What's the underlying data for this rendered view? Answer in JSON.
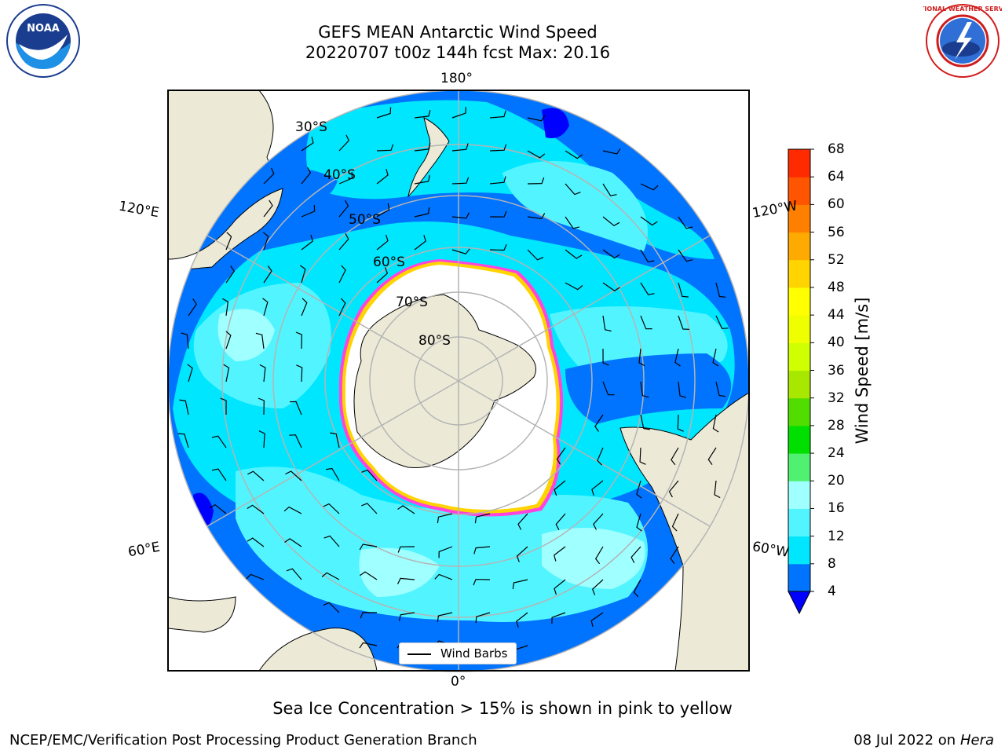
{
  "title": {
    "line1": "GEFS MEAN Antarctic Wind Speed",
    "line2": "20220707 t00z 144h fcst   Max: 20.16"
  },
  "logos": {
    "left": {
      "icon": "noaa-logo",
      "text": "NOAA"
    },
    "right": {
      "icon": "nws-logo",
      "text": "NATIONAL WEATHER SERVICE"
    }
  },
  "map": {
    "projection": "south-polar-stereographic",
    "meridian_labels": {
      "top": "180°",
      "bottom": "0°",
      "upper_left": "120°E",
      "upper_right": "120°W",
      "lower_left": "60°E",
      "lower_right": "60°W"
    },
    "latitude_labels": [
      "30°S",
      "40°S",
      "50°S",
      "60°S",
      "70°S",
      "80°S"
    ],
    "legend_label": "Wind Barbs",
    "colors": {
      "land": "#ecead7",
      "sea_ice": "#ffffff",
      "wind_4_8": "#0073ff",
      "wind_8_12": "#00e6ff",
      "wind_12_16": "#52f5ff",
      "wind_16_20": "#a0ffff",
      "ice_edge_pink": "#ff44dd",
      "ice_edge_yellow": "#ffd400",
      "grid": "#b4b4b4"
    }
  },
  "colorbar": {
    "title": "Wind Speed [m/s]",
    "ticks": [
      "4",
      "8",
      "12",
      "16",
      "20",
      "24",
      "28",
      "32",
      "36",
      "40",
      "44",
      "48",
      "52",
      "56",
      "60",
      "64",
      "68"
    ],
    "colors": [
      "#0073ff",
      "#00e6ff",
      "#52f5ff",
      "#a0ffff",
      "#50f070",
      "#00e000",
      "#52dd00",
      "#a8e800",
      "#cfff00",
      "#f0ff00",
      "#ffff00",
      "#ffd400",
      "#ffaa00",
      "#ff8000",
      "#ff5500",
      "#ff2a00"
    ],
    "under_color": "#0000ff"
  },
  "caption": "Sea Ice Concentration > 15% is shown in pink to yellow",
  "footer": {
    "left": "NCEP/EMC/Verification Post Processing Product Generation Branch",
    "right_prefix": "08 Jul 2022 on ",
    "right_host": "Hera"
  }
}
